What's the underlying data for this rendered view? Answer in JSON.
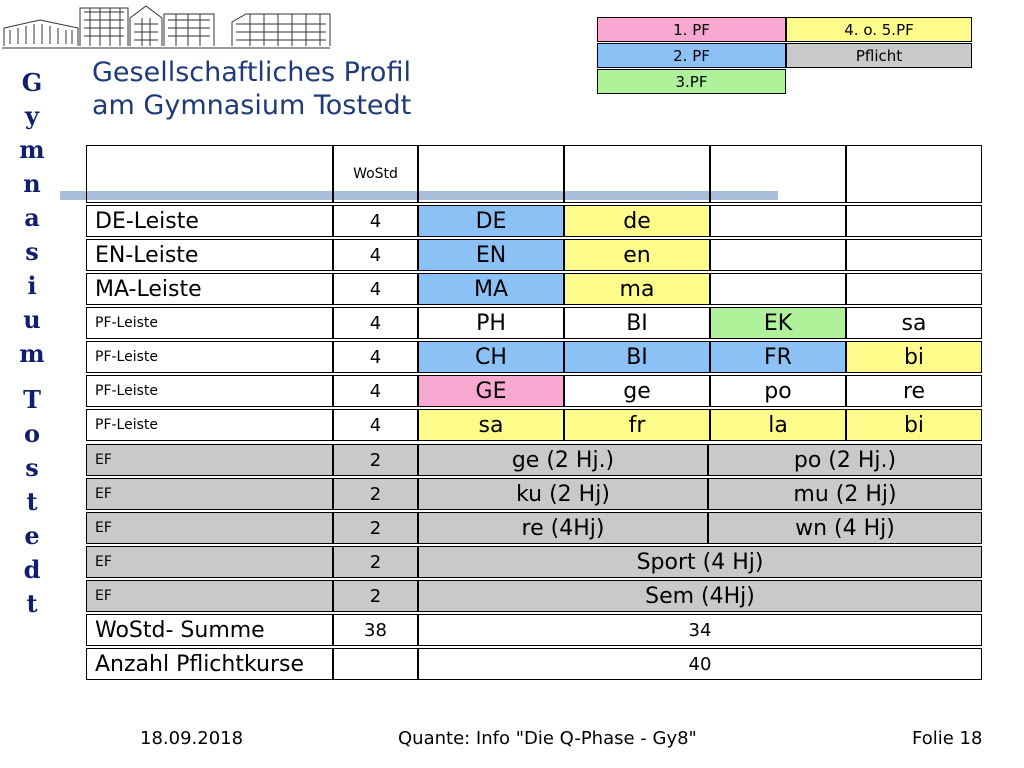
{
  "title": {
    "line1": "Gesellschaftliches Profil",
    "line2": "am Gymnasium Tostedt"
  },
  "side_text": [
    "G",
    "y",
    "m",
    "n",
    "a",
    "s",
    "i",
    "u",
    "m",
    "T",
    "o",
    "s",
    "t",
    "e",
    "d",
    "t"
  ],
  "legend": [
    {
      "label": "1. PF",
      "color": "#f7a9d2"
    },
    {
      "label": "2. PF",
      "color": "#8cc1f5"
    },
    {
      "label": "3.PF",
      "color": "#b0f29a"
    },
    {
      "label": "4. o. 5.PF",
      "color": "#fdfb8a"
    },
    {
      "label": "Pflicht",
      "color": "#c9c9c9"
    }
  ],
  "colors": {
    "pf1": "#f7a9d2",
    "pf2": "#8cc1f5",
    "pf3": "#b0f29a",
    "pf45": "#fdfb8a",
    "pflicht": "#c9c9c9",
    "title": "#1f3a7a",
    "side": "#0f1f6e",
    "bar": "#a9bfd9"
  },
  "table": {
    "wostd_header": "WoStd",
    "rows": [
      {
        "label": "DE-Leiste",
        "wostd": "4",
        "cells": [
          "DE",
          "de",
          "",
          ""
        ]
      },
      {
        "label": "EN-Leiste",
        "wostd": "4",
        "cells": [
          "EN",
          "en",
          "",
          ""
        ]
      },
      {
        "label": "MA-Leiste",
        "wostd": "4",
        "cells": [
          "MA",
          "ma",
          "",
          ""
        ]
      },
      {
        "label": "PF-Leiste",
        "wostd": "4",
        "cells": [
          "PH",
          "BI",
          "EK",
          "sa"
        ]
      },
      {
        "label": "PF-Leiste",
        "wostd": "4",
        "cells": [
          "CH",
          "BI",
          "FR",
          "bi"
        ]
      },
      {
        "label": "PF-Leiste",
        "wostd": "4",
        "cells": [
          "GE",
          "ge",
          "po",
          "re"
        ]
      },
      {
        "label": "PF-Leiste",
        "wostd": "4",
        "cells": [
          "sa",
          "fr",
          "la",
          "bi"
        ]
      },
      {
        "label": "EF",
        "wostd": "2",
        "cells": [
          "ge (2 Hj.)",
          "po (2 Hj.)"
        ]
      },
      {
        "label": "EF",
        "wostd": "2",
        "cells": [
          "ku (2 Hj)",
          "mu (2 Hj)"
        ]
      },
      {
        "label": "EF",
        "wostd": "2",
        "cells": [
          "re (4Hj)",
          "wn (4 Hj)"
        ]
      },
      {
        "label": "EF",
        "wostd": "2",
        "cells": [
          "Sport (4 Hj)"
        ]
      },
      {
        "label": "EF",
        "wostd": "2",
        "cells": [
          "Sem (4Hj)"
        ]
      },
      {
        "label": "WoStd- Summe",
        "wostd": "38",
        "cells": [
          "34"
        ]
      },
      {
        "label": "Anzahl Pflichtkurse",
        "wostd": "",
        "cells": [
          "40"
        ]
      }
    ]
  },
  "footer": {
    "date": "18.09.2018",
    "center": "Quante: Info \"Die Q-Phase - Gy8\"",
    "slide": "Folie 18"
  }
}
